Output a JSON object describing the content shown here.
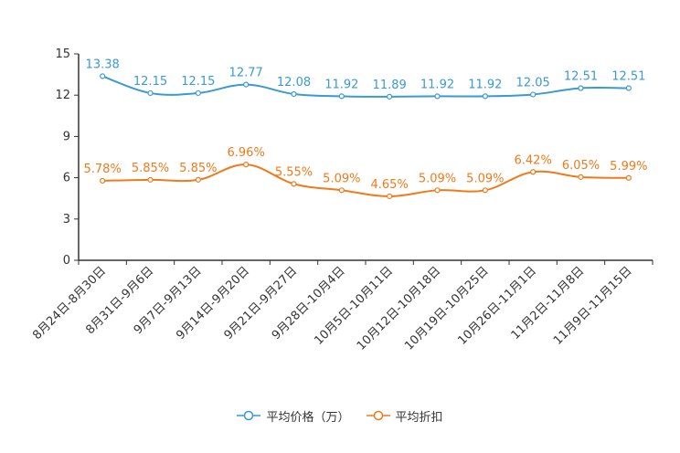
{
  "chart_data": {
    "type": "line",
    "categories": [
      "8月24日-8月30日",
      "8月31日-9月6日",
      "9月7日-9月13日",
      "9月14日-9月20日",
      "9月21日-9月27日",
      "9月28日-10月4日",
      "10月5日-10月11日",
      "10月12日-10月18日",
      "10月19日-10月25日",
      "10月26日-11月1日",
      "11月2日-11月8日",
      "11月9日-11月15日"
    ],
    "yticks": [
      "0",
      "3",
      "6",
      "9",
      "12",
      "15"
    ],
    "ylim": [
      0,
      15
    ],
    "series": [
      {
        "name": "平均价格（万）",
        "color": "#3a9ad1",
        "values": [
          13.38,
          12.15,
          12.15,
          12.77,
          12.08,
          11.92,
          11.89,
          11.92,
          11.92,
          12.05,
          12.51,
          12.51
        ],
        "labels": [
          "13.38",
          "12.15",
          "12.15",
          "12.77",
          "12.08",
          "11.92",
          "11.89",
          "11.92",
          "11.92",
          "12.05",
          "12.51",
          "12.51"
        ]
      },
      {
        "name": "平均折扣",
        "color": "#f07a1a",
        "values": [
          5.78,
          5.85,
          5.85,
          6.96,
          5.55,
          5.09,
          4.65,
          5.09,
          5.09,
          6.42,
          6.05,
          5.99
        ],
        "labels": [
          "5.78%",
          "5.85%",
          "5.85%",
          "6.96%",
          "5.55%",
          "5.09%",
          "4.65%",
          "5.09%",
          "5.09%",
          "6.42%",
          "6.05%",
          "5.99%"
        ]
      }
    ],
    "legend_position": "bottom"
  }
}
